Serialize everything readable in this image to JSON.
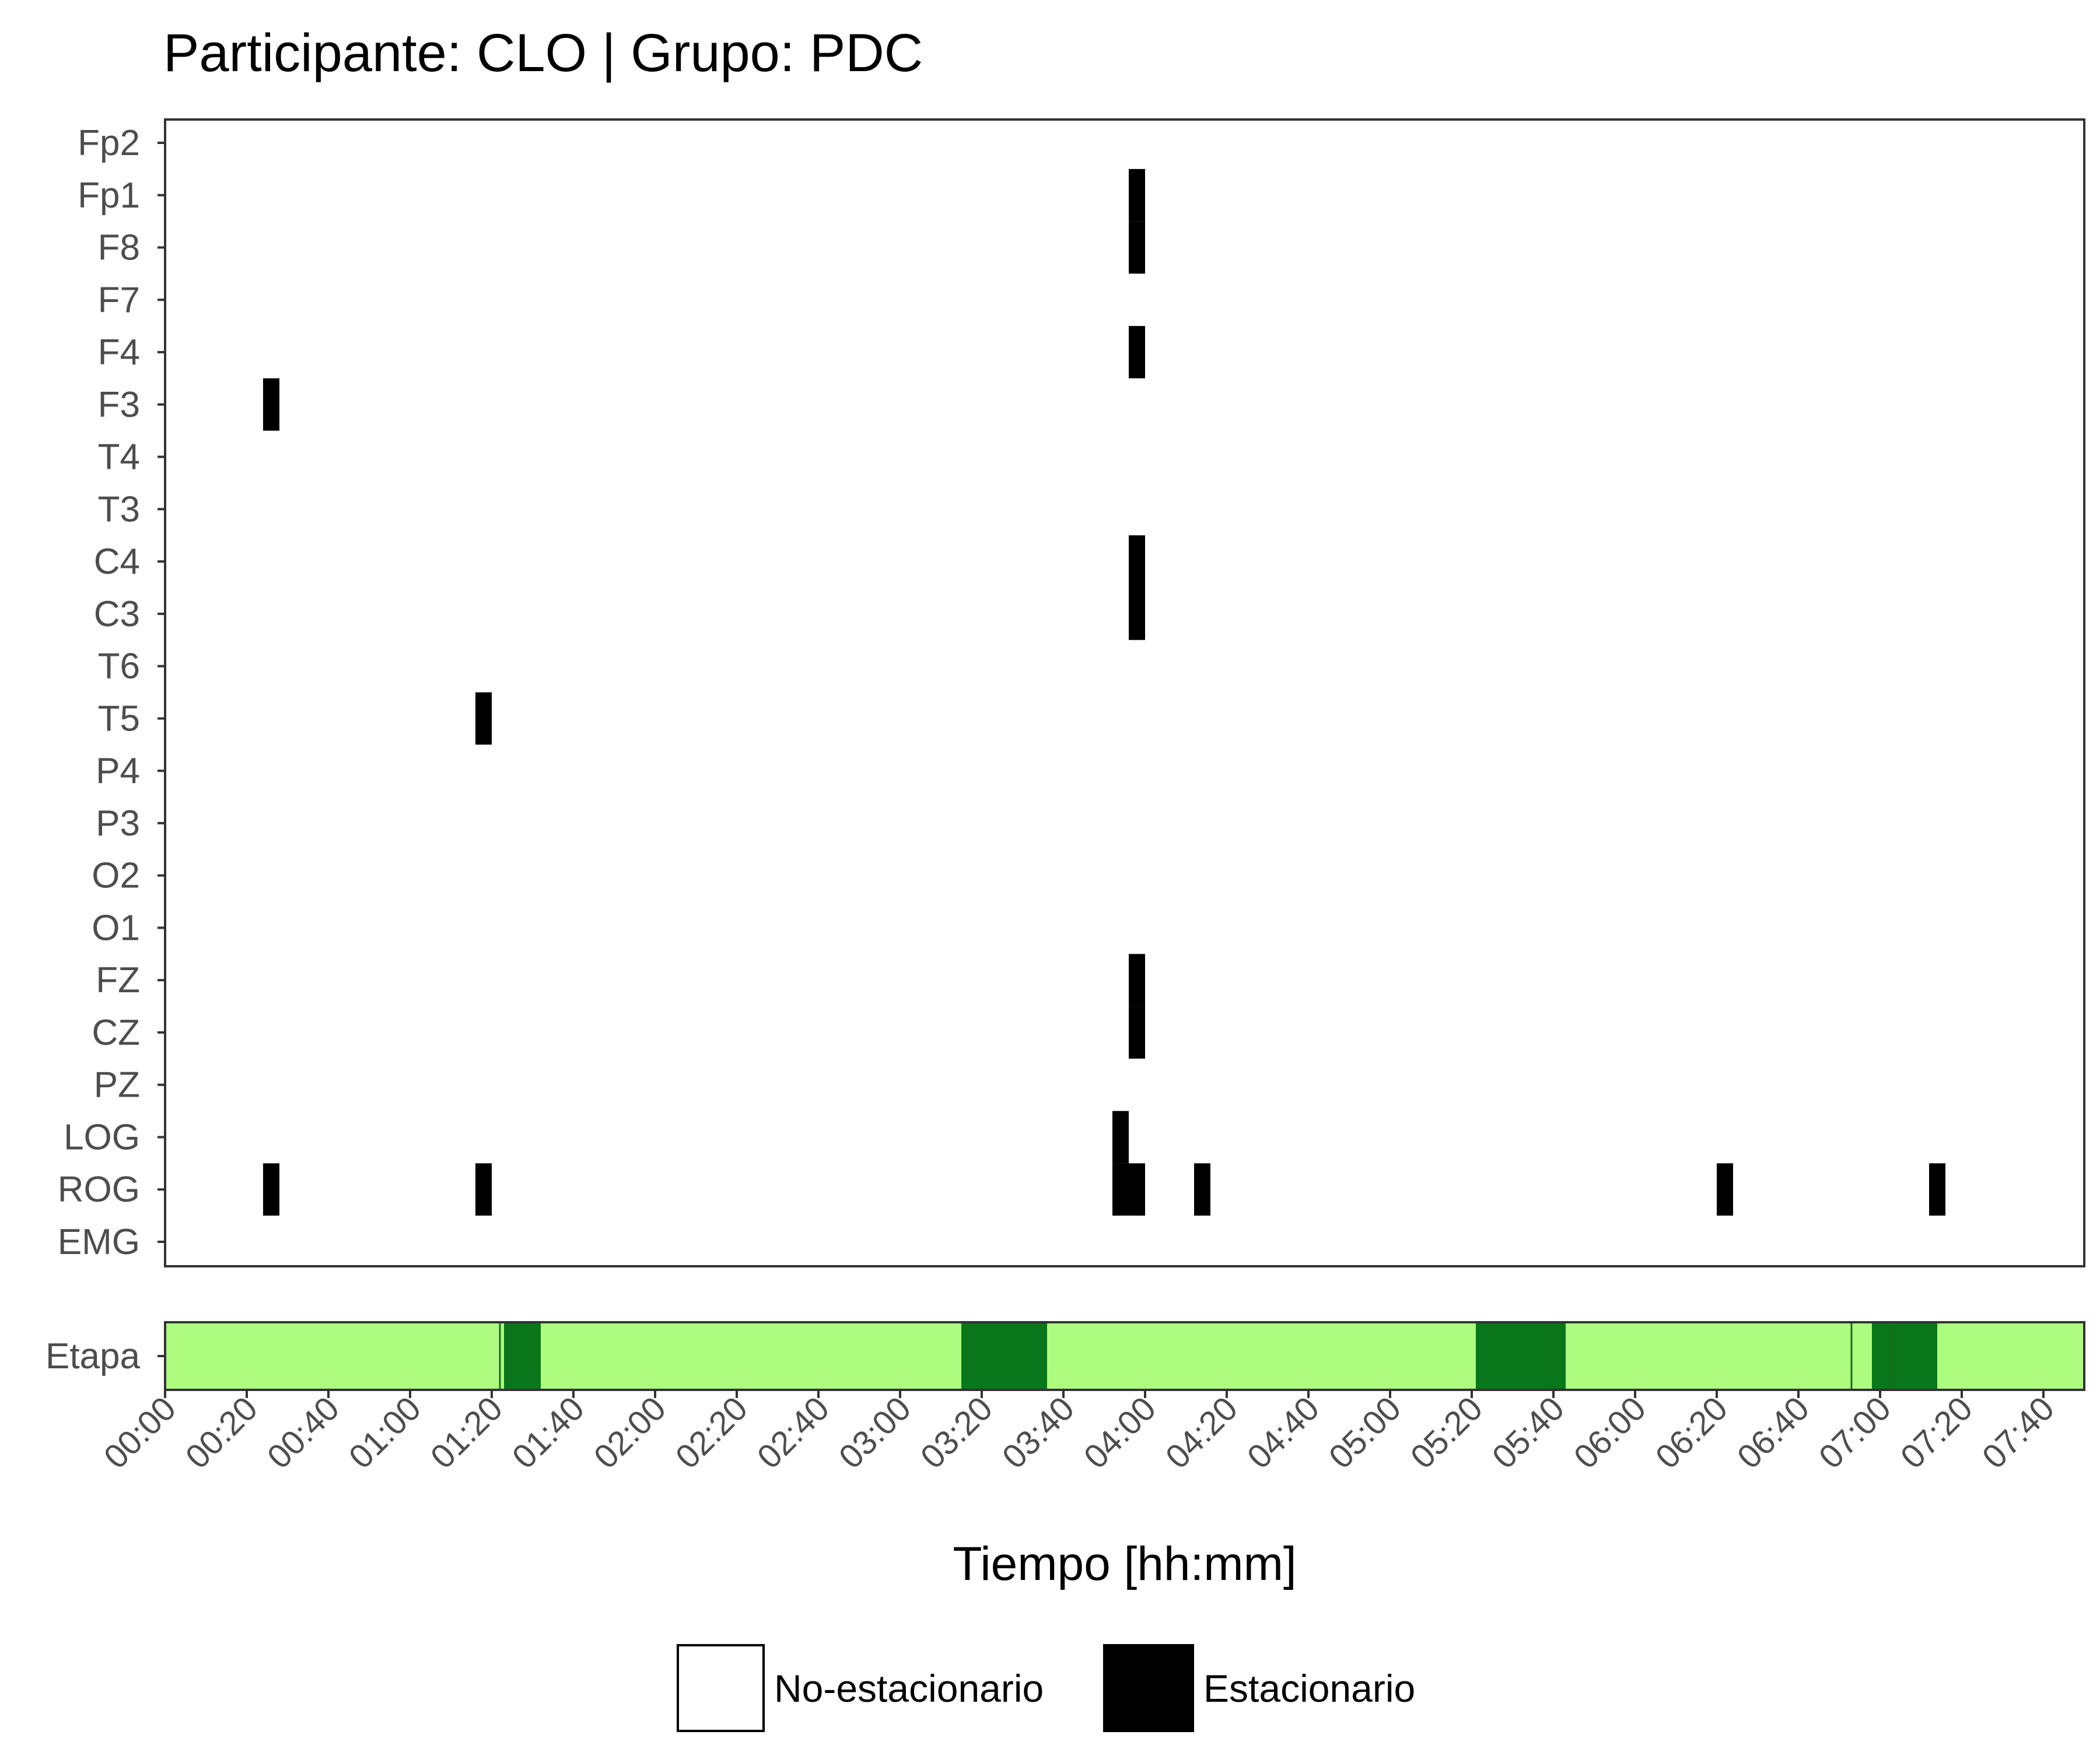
{
  "chart_data": [
    {
      "type": "heatmap",
      "title": "Participante: CLO | Grupo: PDC",
      "y_channels": [
        "Fp2",
        "Fp1",
        "F8",
        "F7",
        "F4",
        "F3",
        "T4",
        "T3",
        "C4",
        "C3",
        "T6",
        "T5",
        "P4",
        "P3",
        "O2",
        "O1",
        "FZ",
        "CZ",
        "PZ",
        "LOG",
        "ROG",
        "EMG"
      ],
      "x_unit": "hh:mm",
      "x_range": [
        "00:00",
        "07:50"
      ],
      "x_step_minutes": 20,
      "x_ticks": [
        "00:00",
        "00:20",
        "00:40",
        "01:00",
        "01:20",
        "01:40",
        "02:00",
        "02:20",
        "02:40",
        "03:00",
        "03:20",
        "03:40",
        "04:00",
        "04:20",
        "04:40",
        "05:00",
        "05:20",
        "05:40",
        "06:00",
        "06:20",
        "06:40",
        "07:00",
        "07:20",
        "07:40"
      ],
      "segment_minutes": 4,
      "stationary_segments": [
        {
          "channel": "Fp1",
          "start": "03:56",
          "end": "04:00"
        },
        {
          "channel": "F8",
          "start": "03:56",
          "end": "04:00"
        },
        {
          "channel": "F4",
          "start": "03:56",
          "end": "04:00"
        },
        {
          "channel": "F3",
          "start": "00:24",
          "end": "00:28"
        },
        {
          "channel": "C4",
          "start": "03:56",
          "end": "04:00"
        },
        {
          "channel": "C3",
          "start": "03:56",
          "end": "04:00"
        },
        {
          "channel": "T5",
          "start": "01:16",
          "end": "01:20"
        },
        {
          "channel": "FZ",
          "start": "03:56",
          "end": "04:00"
        },
        {
          "channel": "CZ",
          "start": "03:56",
          "end": "04:00"
        },
        {
          "channel": "LOG",
          "start": "03:52",
          "end": "03:56"
        },
        {
          "channel": "ROG",
          "start": "00:24",
          "end": "00:28"
        },
        {
          "channel": "ROG",
          "start": "01:16",
          "end": "01:20"
        },
        {
          "channel": "ROG",
          "start": "03:52",
          "end": "04:00"
        },
        {
          "channel": "ROG",
          "start": "04:12",
          "end": "04:16"
        },
        {
          "channel": "ROG",
          "start": "06:20",
          "end": "06:24"
        },
        {
          "channel": "ROG",
          "start": "07:12",
          "end": "07:16"
        }
      ],
      "colors": {
        "stationary": "#000000",
        "non_stationary": "#ffffff"
      },
      "grid": false
    },
    {
      "type": "heatmap",
      "y_label": "Etapa",
      "x_label": "Tiempo [hh:mm]",
      "x_range": [
        "00:00",
        "07:50"
      ],
      "colors": {
        "base": "#adfc80",
        "dark": "#077719",
        "line": "#1b6b1b"
      },
      "segments": [
        {
          "start": "01:23",
          "end": "01:32",
          "level": "dark"
        },
        {
          "start": "03:15",
          "end": "03:36",
          "level": "dark"
        },
        {
          "start": "05:21",
          "end": "05:43",
          "level": "dark"
        },
        {
          "start": "06:58",
          "end": "07:14",
          "level": "dark"
        }
      ],
      "markers": [
        "01:22",
        "01:24",
        "06:53",
        "07:03"
      ]
    }
  ],
  "legend": {
    "placement": "bottom",
    "items": [
      {
        "label": "No-estacionario",
        "color": "#ffffff"
      },
      {
        "label": "Estacionario",
        "color": "#000000"
      }
    ]
  }
}
